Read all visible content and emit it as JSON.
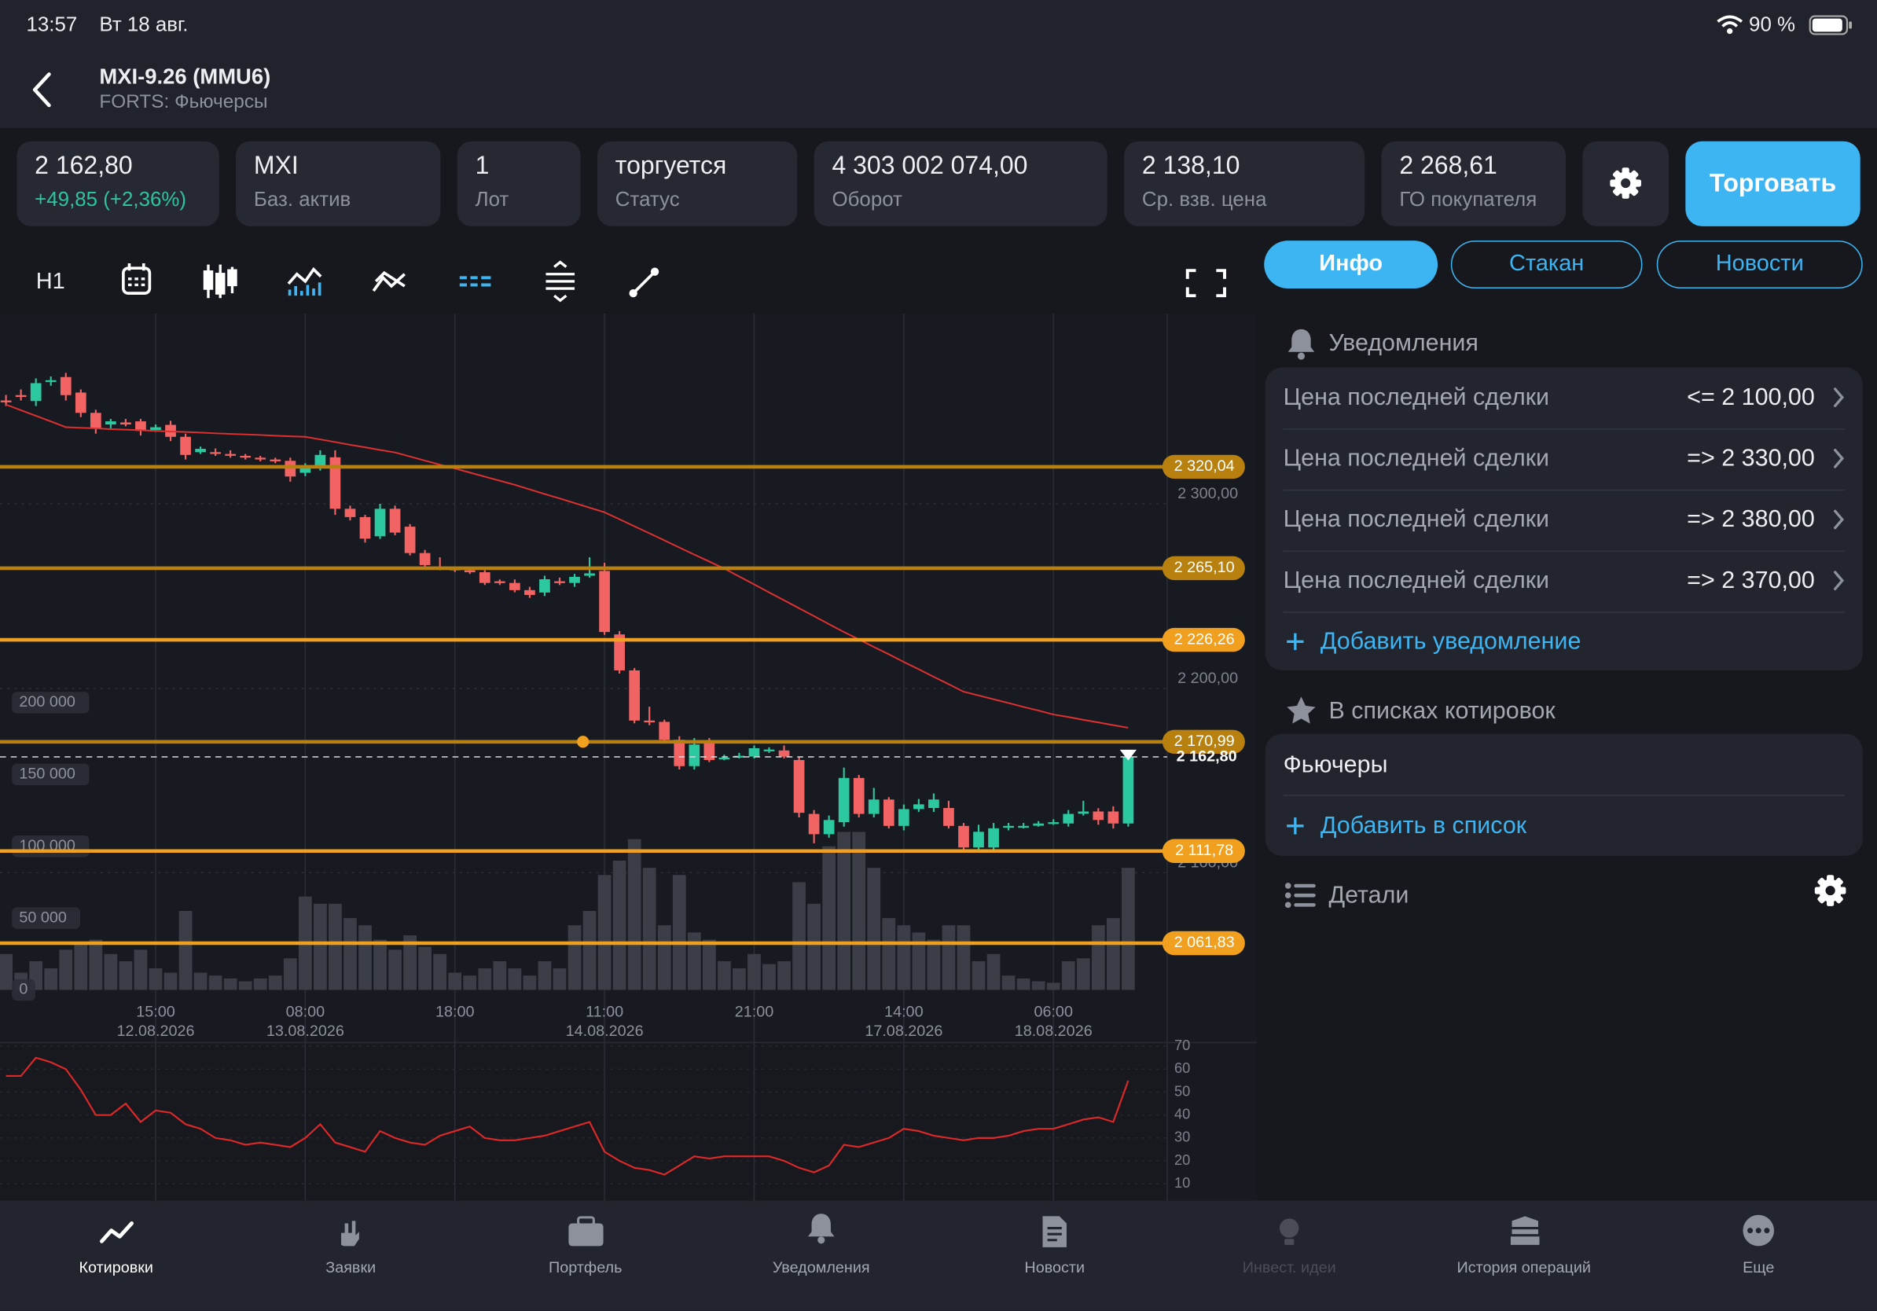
{
  "status_bar": {
    "time": "13:57",
    "date": "Вт 18 авг.",
    "battery": "90 %"
  },
  "header": {
    "title": "MXI-9.26 (MMU6)",
    "subtitle": "FORTS: Фьючерсы"
  },
  "tiles": [
    {
      "value": "2 162,80",
      "change": "+49,85 (+2,36%)"
    },
    {
      "value": "MXI",
      "label": "Баз. актив"
    },
    {
      "value": "1",
      "label": "Лот"
    },
    {
      "value": "торгуется",
      "label": "Статус"
    },
    {
      "value": "4 303 002 074,00",
      "label": "Оборот"
    },
    {
      "value": "2 138,10",
      "label": "Ср. взв. цена"
    },
    {
      "value": "2 268,61",
      "label": "ГО покупателя"
    }
  ],
  "trade_button": "Торговать",
  "toolbar": {
    "timeframe": "H1"
  },
  "tabs": [
    "Инфо",
    "Стакан",
    "Новости"
  ],
  "notifications": {
    "title": "Уведомления",
    "rows": [
      {
        "label": "Цена последней сделки",
        "value": "<= 2 100,00"
      },
      {
        "label": "Цена последней сделки",
        "value": "=> 2 330,00"
      },
      {
        "label": "Цена последней сделки",
        "value": "=> 2 380,00"
      },
      {
        "label": "Цена последней сделки",
        "value": "=> 2 370,00"
      }
    ],
    "add": "Добавить уведомление"
  },
  "watchlists": {
    "title": "В списках котировок",
    "items": [
      "Фьючеры"
    ],
    "add": "Добавить в список"
  },
  "details": {
    "title": "Детали"
  },
  "nav": [
    "Котировки",
    "Заявки",
    "Портфель",
    "Уведомления",
    "Новости",
    "Инвест. идеи",
    "История операций",
    "Еще"
  ],
  "chart_data": {
    "type": "candlestick",
    "up_color": "#2cc9a0",
    "down_color": "#f26464",
    "ylim": [
      2031.3,
      2397.9
    ],
    "yticks": [
      {
        "value": 2300,
        "label": "2 300,00"
      },
      {
        "value": 2200,
        "label": "2 200,00"
      },
      {
        "value": 2100,
        "label": "2 100,00"
      }
    ],
    "xticks": [
      {
        "label": "15:00",
        "date": "12.08.2026"
      },
      {
        "label": "08:00",
        "date": "13.08.2026"
      },
      {
        "label": "18:00"
      },
      {
        "label": "11:00",
        "date": "14.08.2026"
      },
      {
        "label": "21:00"
      },
      {
        "label": "14:00",
        "date": "17.08.2026"
      },
      {
        "label": "06:00",
        "date": "18.08.2026"
      }
    ],
    "levels": [
      {
        "value": 2320.04,
        "label": "2 320,04",
        "color": "#b7800f"
      },
      {
        "value": 2265.1,
        "label": "2 265,10",
        "color": "#b7800f"
      },
      {
        "value": 2226.26,
        "label": "2 226,26",
        "color": "#f0a01e"
      },
      {
        "value": 2170.99,
        "label": "2 170,99",
        "color": "#b7800f"
      },
      {
        "value": 2111.78,
        "label": "2 111,78",
        "color": "#f0a01e"
      },
      {
        "value": 2061.83,
        "label": "2 061,83",
        "color": "#f0a01e"
      }
    ],
    "last_price": {
      "value": 2162.8,
      "label": "2 162,80"
    },
    "candles": [
      [
        2356,
        2359,
        2353,
        2355
      ],
      [
        2358.9,
        2362,
        2356,
        2358
      ],
      [
        2355.7,
        2368,
        2353,
        2365.4
      ],
      [
        2366,
        2369,
        2364,
        2367
      ],
      [
        2368.7,
        2371,
        2356,
        2358.9
      ],
      [
        2360.3,
        2362,
        2347,
        2349.3
      ],
      [
        2349.3,
        2351,
        2338,
        2340.8
      ],
      [
        2343,
        2346,
        2341,
        2344.7
      ],
      [
        2344.1,
        2346,
        2342,
        2343
      ],
      [
        2344.7,
        2346,
        2337,
        2339.5
      ],
      [
        2340,
        2343,
        2339,
        2341.5
      ],
      [
        2342.8,
        2345,
        2334,
        2336.3
      ],
      [
        2336.3,
        2338,
        2324,
        2326.5
      ],
      [
        2328,
        2331,
        2327,
        2329.8
      ],
      [
        2328,
        2330,
        2326,
        2327.8
      ],
      [
        2327,
        2329,
        2325,
        2326.5
      ],
      [
        2326,
        2327,
        2324,
        2325.2
      ],
      [
        2325,
        2326,
        2323,
        2324.6
      ],
      [
        2324,
        2325,
        2322,
        2323.3
      ],
      [
        2323.3,
        2325,
        2312,
        2314.8
      ],
      [
        2316.8,
        2322,
        2315,
        2320
      ],
      [
        2320,
        2329,
        2318,
        2326.5
      ],
      [
        2325.2,
        2329,
        2294,
        2297.3
      ],
      [
        2297.3,
        2299,
        2291,
        2292.8
      ],
      [
        2292.8,
        2294,
        2279,
        2281.1
      ],
      [
        2282.4,
        2300,
        2281,
        2297.3
      ],
      [
        2297.3,
        2299,
        2283,
        2284.4
      ],
      [
        2287.6,
        2289,
        2272,
        2273.3
      ],
      [
        2273.3,
        2275,
        2265,
        2266.8
      ],
      [
        2265.5,
        2271,
        2264,
        2264.9
      ],
      [
        2264.9,
        2266,
        2263,
        2264.2
      ],
      [
        2264,
        2265,
        2262,
        2262.9
      ],
      [
        2262.9,
        2264,
        2256,
        2257.1
      ],
      [
        2258,
        2259,
        2256,
        2257.8
      ],
      [
        2257.1,
        2259,
        2252,
        2253.2
      ],
      [
        2253.2,
        2255,
        2249,
        2250.6
      ],
      [
        2251.9,
        2261,
        2250,
        2259.1
      ],
      [
        2258,
        2260,
        2256,
        2257.8
      ],
      [
        2257.1,
        2262,
        2255,
        2260.4
      ],
      [
        2261,
        2271,
        2260,
        2262.3
      ],
      [
        2263.6,
        2268,
        2229,
        2230.5
      ],
      [
        2229.2,
        2231,
        2208,
        2209.7
      ],
      [
        2209.7,
        2211,
        2181,
        2182.5
      ],
      [
        2182.5,
        2190,
        2180,
        2181.8
      ],
      [
        2181.8,
        2183,
        2170,
        2172.1
      ],
      [
        2172.1,
        2174,
        2156,
        2157.8
      ],
      [
        2157.8,
        2173,
        2156,
        2169.5
      ],
      [
        2170.8,
        2173,
        2160,
        2161.1
      ],
      [
        2162,
        2164,
        2161,
        2162.4
      ],
      [
        2163,
        2165,
        2162,
        2163.4
      ],
      [
        2163,
        2169,
        2162,
        2167.5
      ],
      [
        2166.3,
        2168,
        2165,
        2166.8
      ],
      [
        2166.3,
        2169,
        2162,
        2163
      ],
      [
        2161.1,
        2163,
        2130,
        2132.5
      ],
      [
        2131.9,
        2134,
        2116,
        2120.9
      ],
      [
        2120.9,
        2131,
        2119,
        2128.6
      ],
      [
        2127.4,
        2157,
        2125,
        2151.4
      ],
      [
        2151.4,
        2153,
        2130,
        2131.9
      ],
      [
        2131.9,
        2146,
        2130,
        2139.7
      ],
      [
        2139.7,
        2141,
        2124,
        2125.4
      ],
      [
        2125.4,
        2137,
        2123,
        2134.5
      ],
      [
        2134.5,
        2140,
        2133,
        2137.1
      ],
      [
        2135.1,
        2143,
        2133,
        2139.7
      ],
      [
        2135.1,
        2139,
        2124,
        2125.4
      ],
      [
        2125.4,
        2127,
        2111,
        2113.7
      ],
      [
        2113.7,
        2126,
        2112,
        2122.2
      ],
      [
        2113.7,
        2127,
        2112,
        2124.1
      ],
      [
        2124.5,
        2127,
        2123,
        2125.4
      ],
      [
        2125,
        2127,
        2124,
        2125.4
      ],
      [
        2125.5,
        2128,
        2125,
        2126.7
      ],
      [
        2127,
        2129,
        2126,
        2127.4
      ],
      [
        2126.7,
        2134,
        2125,
        2131.9
      ],
      [
        2132,
        2139,
        2131,
        2133.2
      ],
      [
        2133.2,
        2135,
        2126,
        2128.6
      ],
      [
        2133.2,
        2136,
        2124,
        2126.7
      ],
      [
        2126.7,
        2166,
        2125,
        2162.8
      ]
    ],
    "ma": {
      "color": "#e03030",
      "values": [
        2353.8,
        2350.7,
        2347.7,
        2344.6,
        2341.5,
        2341.2,
        2340.9,
        2340.5,
        2340.2,
        2339.9,
        2339.5,
        2339.2,
        2338.9,
        2338.6,
        2338.2,
        2337.9,
        2337.6,
        2337.3,
        2336.9,
        2336.6,
        2336.3,
        2334.9,
        2333.5,
        2332.0,
        2330.6,
        2329.2,
        2327.8,
        2325.6,
        2323.4,
        2321.2,
        2319.1,
        2316.9,
        2314.7,
        2312.5,
        2310.3,
        2307.8,
        2305.3,
        2302.9,
        2300.4,
        2297.9,
        2295.4,
        2291.6,
        2287.8,
        2284.0,
        2280.2,
        2276.3,
        2272.5,
        2268.7,
        2264.9,
        2260.6,
        2256.3,
        2252.0,
        2247.7,
        2243.4,
        2239.1,
        2234.8,
        2230.5,
        2226.5,
        2222.4,
        2218.4,
        2214.3,
        2210.3,
        2206.2,
        2202.2,
        2198.1,
        2196.1,
        2194.0,
        2192.0,
        2189.9,
        2187.9,
        2185.8,
        2184.4,
        2182.9,
        2181.5,
        2180.0,
        2178.6
      ]
    },
    "volume": {
      "color": "#3b3e47",
      "ylim": [
        0,
        200000
      ],
      "yticks": [
        0,
        {
          "value": 50000,
          "label": "50 000"
        },
        {
          "value": 100000,
          "label": "100 000"
        },
        {
          "value": 150000,
          "label": "150 000"
        },
        {
          "value": 200000,
          "label": "200 000"
        }
      ],
      "values": [
        25000,
        12000,
        20000,
        15000,
        28000,
        33000,
        35000,
        25000,
        20000,
        28000,
        15000,
        12000,
        55000,
        12000,
        10000,
        8000,
        6000,
        8000,
        10000,
        22000,
        65000,
        60000,
        60000,
        50000,
        45000,
        35000,
        28000,
        38000,
        30000,
        25000,
        12000,
        10000,
        15000,
        20000,
        15000,
        10000,
        20000,
        15000,
        45000,
        55000,
        80000,
        90000,
        105000,
        85000,
        45000,
        80000,
        40000,
        35000,
        20000,
        15000,
        25000,
        18000,
        20000,
        75000,
        60000,
        100000,
        110000,
        110000,
        85000,
        50000,
        45000,
        40000,
        35000,
        45000,
        45000,
        20000,
        25000,
        10000,
        8000,
        6000,
        5000,
        20000,
        22000,
        45000,
        50000,
        85000
      ]
    },
    "rsi": {
      "color": "#e02828",
      "ylim": [
        10,
        70
      ],
      "yticks": [
        10,
        20,
        30,
        40,
        50,
        60,
        70
      ],
      "values": [
        57,
        57,
        65,
        63,
        60,
        51,
        40,
        40,
        45,
        37,
        42,
        41,
        36,
        34,
        30,
        29,
        27,
        28,
        27,
        26,
        30,
        36,
        28,
        26,
        24,
        33,
        30,
        28,
        27,
        31,
        33,
        35,
        30,
        29,
        29,
        30,
        31,
        33,
        35,
        37,
        24,
        20,
        17,
        16,
        14,
        18,
        22,
        21,
        22,
        22,
        22,
        22,
        20,
        17,
        15,
        18,
        27,
        26,
        28,
        30,
        34,
        33,
        31,
        30,
        29,
        30,
        30,
        31,
        33,
        34,
        34,
        36,
        38,
        39,
        37,
        55
      ]
    }
  }
}
